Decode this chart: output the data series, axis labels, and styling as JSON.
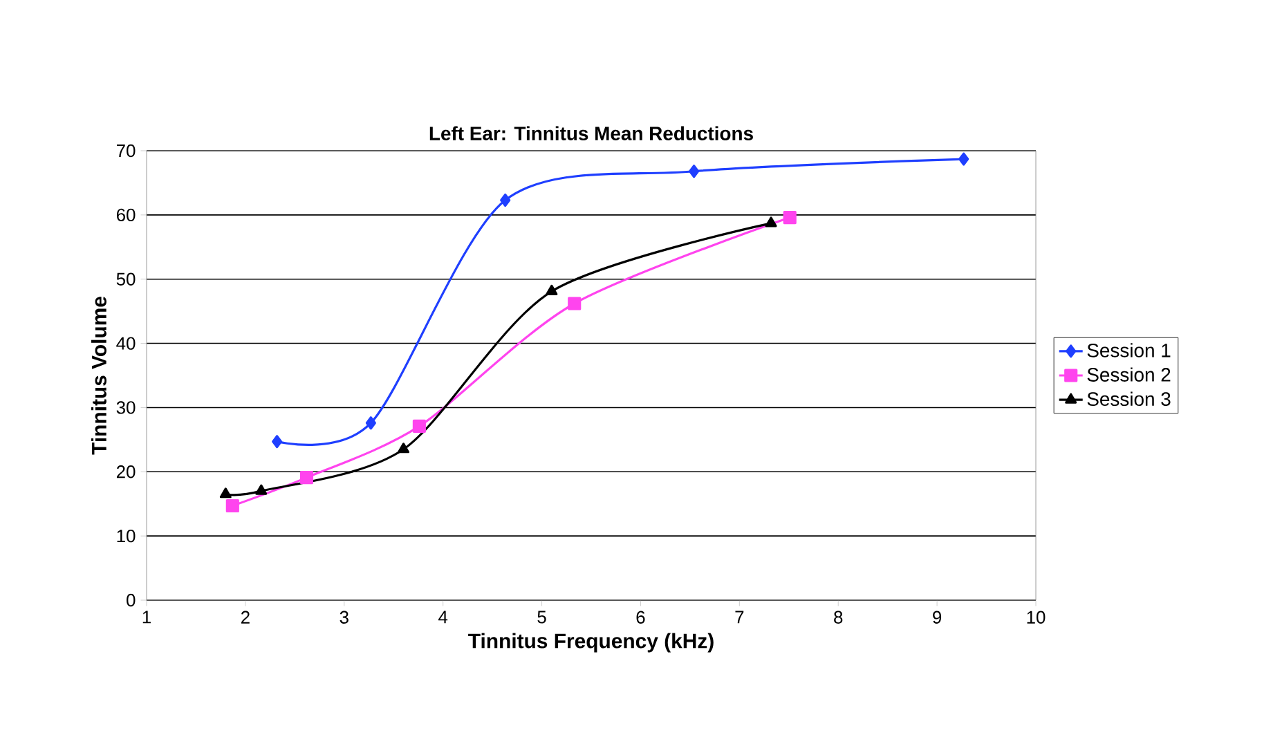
{
  "chart_data": {
    "type": "line",
    "title": "Left Ear: Tinnitus Mean Reductions",
    "xlabel": "Tinnitus Frequency (kHz)",
    "ylabel": "Tinnitus Volume",
    "xlim": [
      1,
      10
    ],
    "xticks": [
      1,
      2,
      3,
      4,
      5,
      6,
      7,
      8,
      9,
      10
    ],
    "ylim": [
      0,
      70
    ],
    "yticks": [
      0,
      10,
      20,
      30,
      40,
      50,
      60,
      70
    ],
    "grid": "y",
    "legend": "right",
    "line_style": "solid",
    "series": [
      {
        "name": "Session 1",
        "color": "#1f3fff",
        "marker": "diamond",
        "x": [
          2.32,
          3.27,
          4.63,
          6.54,
          9.27
        ],
        "values": [
          24.7,
          27.6,
          62.3,
          66.8,
          68.7
        ]
      },
      {
        "name": "Session 2",
        "color": "#ff44ee",
        "marker": "square",
        "x": [
          1.87,
          2.62,
          3.76,
          5.33,
          7.51
        ],
        "values": [
          14.7,
          19.1,
          27.1,
          46.2,
          59.6
        ]
      },
      {
        "name": "Session 3",
        "color": "#000000",
        "marker": "triangle",
        "x": [
          1.8,
          2.16,
          3.6,
          5.1,
          7.32
        ],
        "values": [
          16.5,
          17.0,
          23.5,
          48.1,
          58.7
        ]
      }
    ]
  }
}
